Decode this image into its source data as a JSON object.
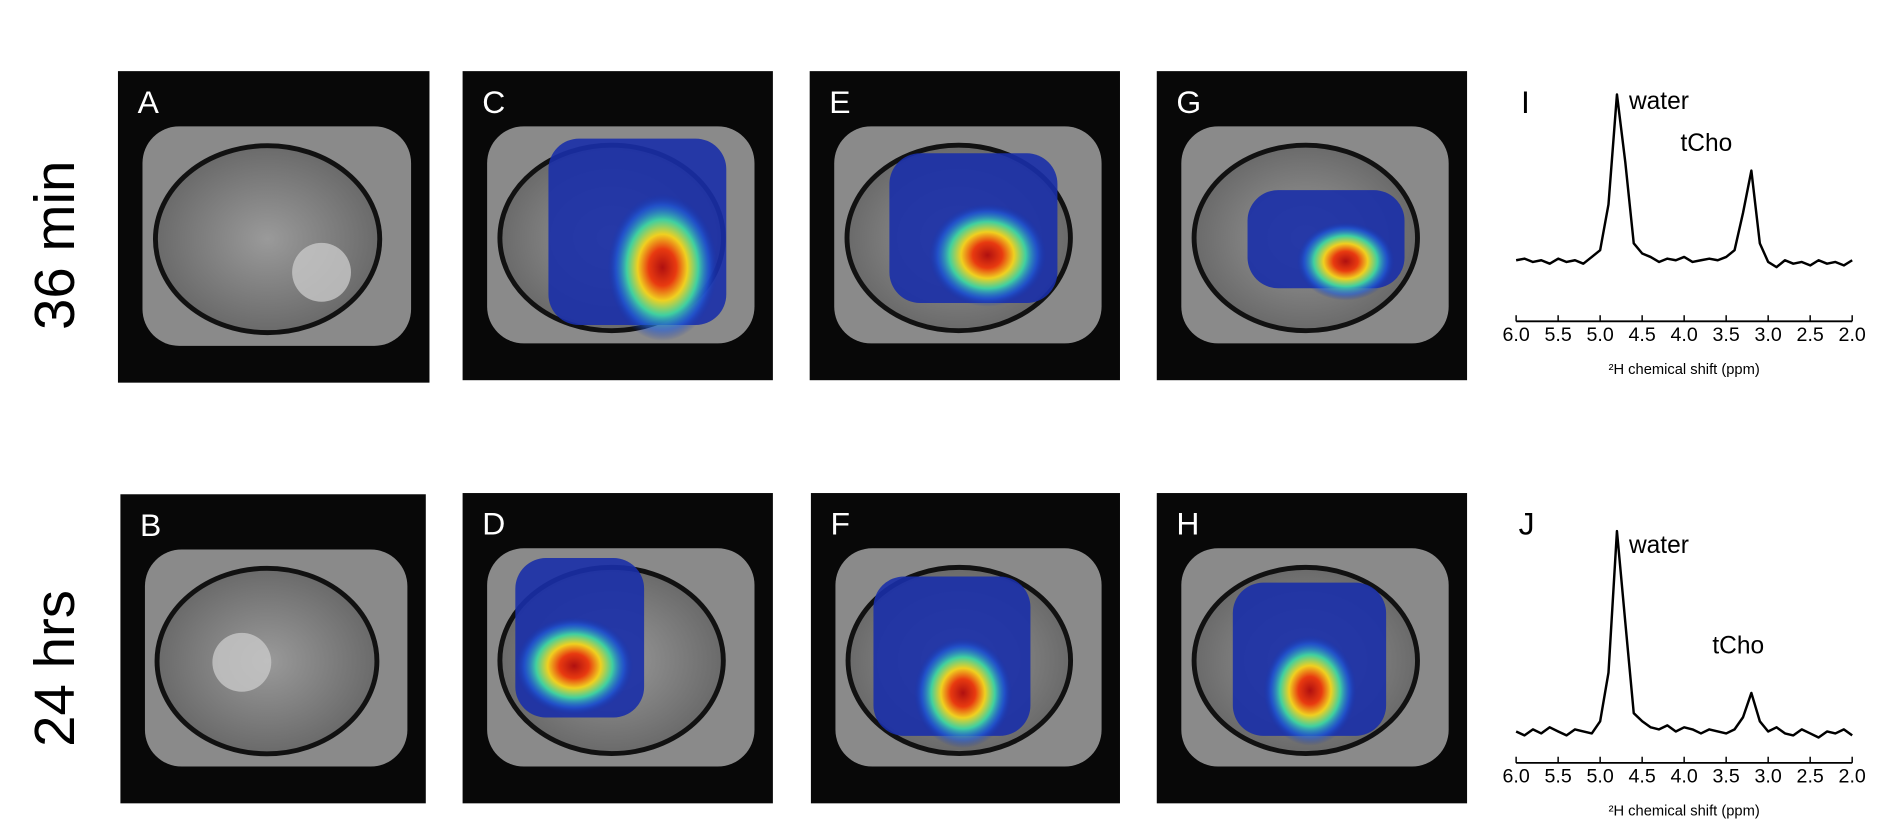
{
  "row_labels": [
    "36 min",
    "24 hrs"
  ],
  "image_panels": [
    "A",
    "C",
    "E",
    "G",
    "B",
    "D",
    "F",
    "H"
  ],
  "chart_data": [
    {
      "type": "line",
      "panel_label": "I",
      "x_label": "²H chemical shift (ppm)",
      "color": "#000000",
      "x": [
        6.0,
        5.9,
        5.8,
        5.7,
        5.6,
        5.5,
        5.4,
        5.3,
        5.2,
        5.1,
        5.0,
        4.9,
        4.8,
        4.7,
        4.6,
        4.5,
        4.4,
        4.3,
        4.2,
        4.1,
        4.0,
        3.9,
        3.8,
        3.7,
        3.6,
        3.5,
        3.4,
        3.3,
        3.2,
        3.1,
        3.0,
        2.9,
        2.8,
        2.7,
        2.6,
        2.5,
        2.4,
        2.3,
        2.2,
        2.1,
        2.0
      ],
      "values": [
        2,
        3,
        1,
        2,
        0,
        3,
        1,
        2,
        0,
        4,
        8,
        35,
        100,
        60,
        12,
        6,
        4,
        1,
        3,
        2,
        4,
        1,
        2,
        3,
        2,
        4,
        8,
        30,
        55,
        12,
        1,
        -2,
        2,
        0,
        1,
        -1,
        2,
        0,
        1,
        -1,
        2
      ],
      "annotations": [
        "water",
        "tCho"
      ],
      "xlim": [
        6,
        2
      ],
      "xticks": [
        {
          "value": 6,
          "label": "6.0"
        },
        5.5,
        {
          "value": 5,
          "label": "5.0"
        },
        4.5,
        {
          "value": 4,
          "label": "4.0"
        },
        3.5,
        {
          "value": 3,
          "label": "3.0"
        },
        2.5,
        {
          "value": 2,
          "label": "2.0"
        }
      ]
    },
    {
      "type": "line",
      "panel_label": "J",
      "x_label": "²H chemical shift (ppm)",
      "color": "#000000",
      "x": [
        6.0,
        5.9,
        5.8,
        5.7,
        5.6,
        5.5,
        5.4,
        5.3,
        5.2,
        5.1,
        5.0,
        4.9,
        4.8,
        4.7,
        4.6,
        4.5,
        4.4,
        4.3,
        4.2,
        4.1,
        4.0,
        3.9,
        3.8,
        3.7,
        3.6,
        3.5,
        3.4,
        3.3,
        3.2,
        3.1,
        3.0,
        2.9,
        2.8,
        2.7,
        2.6,
        2.5,
        2.4,
        2.3,
        2.2,
        2.1,
        2.0
      ],
      "values": [
        1,
        -1,
        2,
        0,
        3,
        1,
        -1,
        2,
        1,
        0,
        6,
        30,
        100,
        55,
        10,
        6,
        3,
        2,
        4,
        1,
        3,
        2,
        0,
        2,
        1,
        0,
        2,
        8,
        20,
        6,
        1,
        3,
        0,
        -1,
        2,
        0,
        -2,
        1,
        0,
        2,
        -1
      ],
      "annotations": [
        "water",
        "tCho"
      ],
      "xlim": [
        6,
        2
      ],
      "xticks": [
        {
          "value": 6,
          "label": "6.0"
        },
        5.5,
        {
          "value": 5,
          "label": "5.0"
        },
        4.5,
        {
          "value": 4,
          "label": "4.0"
        },
        3.5,
        {
          "value": 3,
          "label": "3.0"
        },
        2.5,
        {
          "value": 2,
          "label": "2.0"
        }
      ]
    }
  ]
}
